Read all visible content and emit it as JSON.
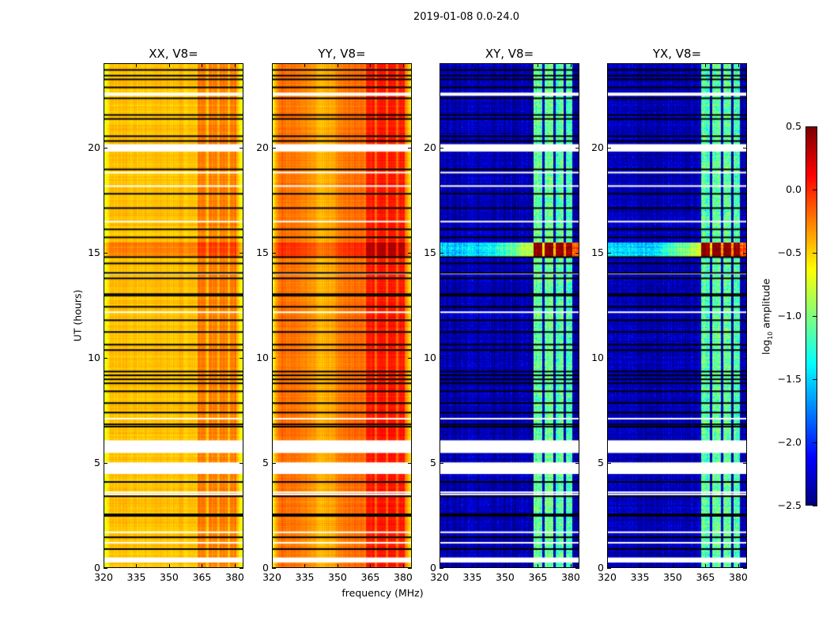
{
  "suptitle": "2019-01-08 0.0-24.0",
  "panels": [
    {
      "title": "XX, V8=",
      "pol": "XX"
    },
    {
      "title": "YY, V8=",
      "pol": "YY"
    },
    {
      "title": "XY, V8=",
      "pol": "XY"
    },
    {
      "title": "YX, V8=",
      "pol": "YX"
    }
  ],
  "xlabel": "frequency (MHz)",
  "ylabel": "UT (hours)",
  "colorbar": {
    "label_main": "log",
    "label_sub": "10",
    "label_rest": " amplitude",
    "ticks": [
      "0.5",
      "0.0",
      "−0.5",
      "−1.0",
      "−1.5",
      "−2.0",
      "−2.5"
    ],
    "range": [
      -2.5,
      0.5
    ],
    "colormap": "jet"
  },
  "chart_data": {
    "type": "heatmap",
    "title": "2019-01-08 0.0-24.0",
    "xlabel": "frequency (MHz)",
    "ylabel": "UT (hours)",
    "xlim": [
      320,
      384
    ],
    "ylim": [
      0,
      24
    ],
    "xticks": [
      "320",
      "335",
      "350",
      "365",
      "380"
    ],
    "yticks": [
      "0",
      "5",
      "10",
      "15",
      "20"
    ],
    "xtick_values": [
      320,
      335,
      350,
      365,
      380
    ],
    "ytick_values": [
      0,
      5,
      10,
      15,
      20
    ],
    "value_label": "log10 amplitude",
    "value_range": [
      -2.5,
      0.5
    ],
    "series": [
      {
        "name": "XX, V8=",
        "base_level": -0.45,
        "band_edge_level": -0.75,
        "rfi_level": -0.25,
        "event_level": -0.05
      },
      {
        "name": "YY, V8=",
        "base_level": -0.2,
        "band_edge_level": -0.7,
        "rfi_level": 0.05,
        "event_level": 0.35
      },
      {
        "name": "XY, V8=",
        "base_level": -2.35,
        "band_edge_level": -2.4,
        "rfi_level": -1.1,
        "event_level": 0.5
      },
      {
        "name": "YX, V8=",
        "base_level": -2.35,
        "band_edge_level": -2.4,
        "rfi_level": -1.1,
        "event_level": 0.5
      }
    ],
    "rfi_bands_mhz": [
      [
        363,
        367
      ],
      [
        368,
        372
      ],
      [
        373,
        376.5
      ],
      [
        377.5,
        380.5
      ]
    ],
    "event_hours": [
      14.8,
      15.5
    ],
    "blank_hour_ranges": [
      [
        19.8,
        20.15
      ],
      [
        5.47,
        6.07
      ],
      [
        4.47,
        5.02
      ],
      [
        0.26,
        0.5
      ],
      [
        22.45,
        22.6
      ]
    ],
    "flagged_hours": [
      23.68,
      23.41,
      23.23,
      22.85,
      22.33,
      21.54,
      21.35,
      20.53,
      20.3,
      18.95,
      17.79,
      17.11,
      16.1,
      15.72,
      14.78,
      14.48,
      14.03,
      13.77,
      13.02,
      12.95,
      12.42,
      11.78,
      11.22,
      10.62,
      10.36,
      9.34,
      9.16,
      8.97,
      8.78,
      8.4,
      7.84,
      7.39,
      6.83,
      6.72,
      4.09,
      3.41,
      2.55,
      2.48,
      1.46,
      0.9
    ],
    "white_line_hours": [
      18.8,
      18.16,
      16.47,
      14.0,
      12.16,
      7.1,
      3.6,
      3.5,
      1.7,
      1.2
    ]
  }
}
